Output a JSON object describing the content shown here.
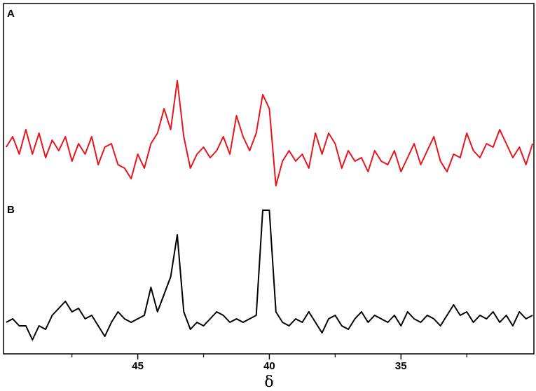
{
  "chart_data": {
    "type": "line",
    "xlabel": "δ",
    "x": [
      50.0,
      49.75,
      49.5,
      49.25,
      49.0,
      48.75,
      48.5,
      48.25,
      48.0,
      47.75,
      47.5,
      47.25,
      47.0,
      46.75,
      46.5,
      46.25,
      46.0,
      45.75,
      45.5,
      45.25,
      45.0,
      44.75,
      44.5,
      44.25,
      44.0,
      43.75,
      43.5,
      43.25,
      43.0,
      42.75,
      42.5,
      42.25,
      42.0,
      41.75,
      41.5,
      41.25,
      41.0,
      40.75,
      40.5,
      40.25,
      40.0,
      39.75,
      39.5,
      39.25,
      39.0,
      38.75,
      38.5,
      38.25,
      38.0,
      37.75,
      37.5,
      37.25,
      37.0,
      36.75,
      36.5,
      36.25,
      36.0,
      35.75,
      35.5,
      35.25,
      35.0,
      34.75,
      34.5,
      34.25,
      34.0,
      33.75,
      33.5,
      33.25,
      33.0,
      32.75,
      32.5,
      32.25,
      32.0,
      31.75,
      31.5,
      31.25,
      31.0,
      30.75,
      30.5,
      30.25,
      30.0
    ],
    "series": [
      {
        "name": "A",
        "color": "#e8141c",
        "values": [
          59,
          62,
          57,
          64,
          57,
          63,
          56,
          61,
          58,
          62,
          55,
          60,
          57,
          62,
          54,
          59,
          60,
          54,
          53,
          50,
          57,
          53,
          60,
          63,
          70,
          64,
          78,
          62,
          53,
          57,
          59,
          56,
          58,
          62,
          57,
          68,
          62,
          58,
          63,
          74,
          70,
          48,
          55,
          58,
          55,
          57,
          53,
          63,
          57,
          63,
          60,
          53,
          58,
          55,
          56,
          52,
          58,
          55,
          54,
          58,
          52,
          56,
          60,
          54,
          58,
          62,
          55,
          52,
          57,
          56,
          63,
          58,
          56,
          60,
          59,
          64,
          60,
          56,
          59,
          54,
          60
        ]
      },
      {
        "name": "B",
        "color": "#000000",
        "values": [
          9,
          10,
          8,
          8,
          4,
          8,
          7,
          11,
          13,
          15,
          12,
          13,
          10,
          11,
          8,
          5,
          9,
          12,
          10,
          9,
          10,
          11,
          19,
          12,
          17,
          22,
          34,
          12,
          7,
          9,
          8,
          10,
          12,
          11,
          9,
          10,
          9,
          10,
          11,
          41,
          41,
          12,
          9,
          8,
          10,
          9,
          12,
          9,
          6,
          10,
          11,
          8,
          7,
          10,
          12,
          9,
          11,
          10,
          9,
          11,
          8,
          12,
          10,
          9,
          11,
          10,
          8,
          11,
          14,
          11,
          12,
          9,
          11,
          10,
          12,
          9,
          11,
          8,
          12,
          10,
          11
        ]
      }
    ],
    "xlim": [
      50.1,
      29.95
    ],
    "xticks": [
      45,
      40,
      35
    ],
    "xminorticks": [
      47.5,
      42.5,
      37.5,
      32.5
    ],
    "ylim": [
      0,
      100
    ]
  }
}
